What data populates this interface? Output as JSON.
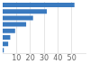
{
  "chart_data": {
    "type": "bar",
    "orientation": "horizontal",
    "categories": [
      null,
      null,
      null,
      null,
      null,
      null,
      null,
      null
    ],
    "values": [
      52000,
      32000,
      22000,
      17000,
      9000,
      5500,
      4000,
      800
    ],
    "color": "#3a7abf",
    "xlim": [
      0,
      60000
    ],
    "xticks": [
      {
        "value": 10000,
        "label": "10"
      },
      {
        "value": 20000,
        "label": "20"
      },
      {
        "value": 30000,
        "label": "30"
      },
      {
        "value": 40000,
        "label": "40"
      },
      {
        "value": 50000,
        "label": "50"
      }
    ],
    "grid": true,
    "tick_labels": "x"
  }
}
